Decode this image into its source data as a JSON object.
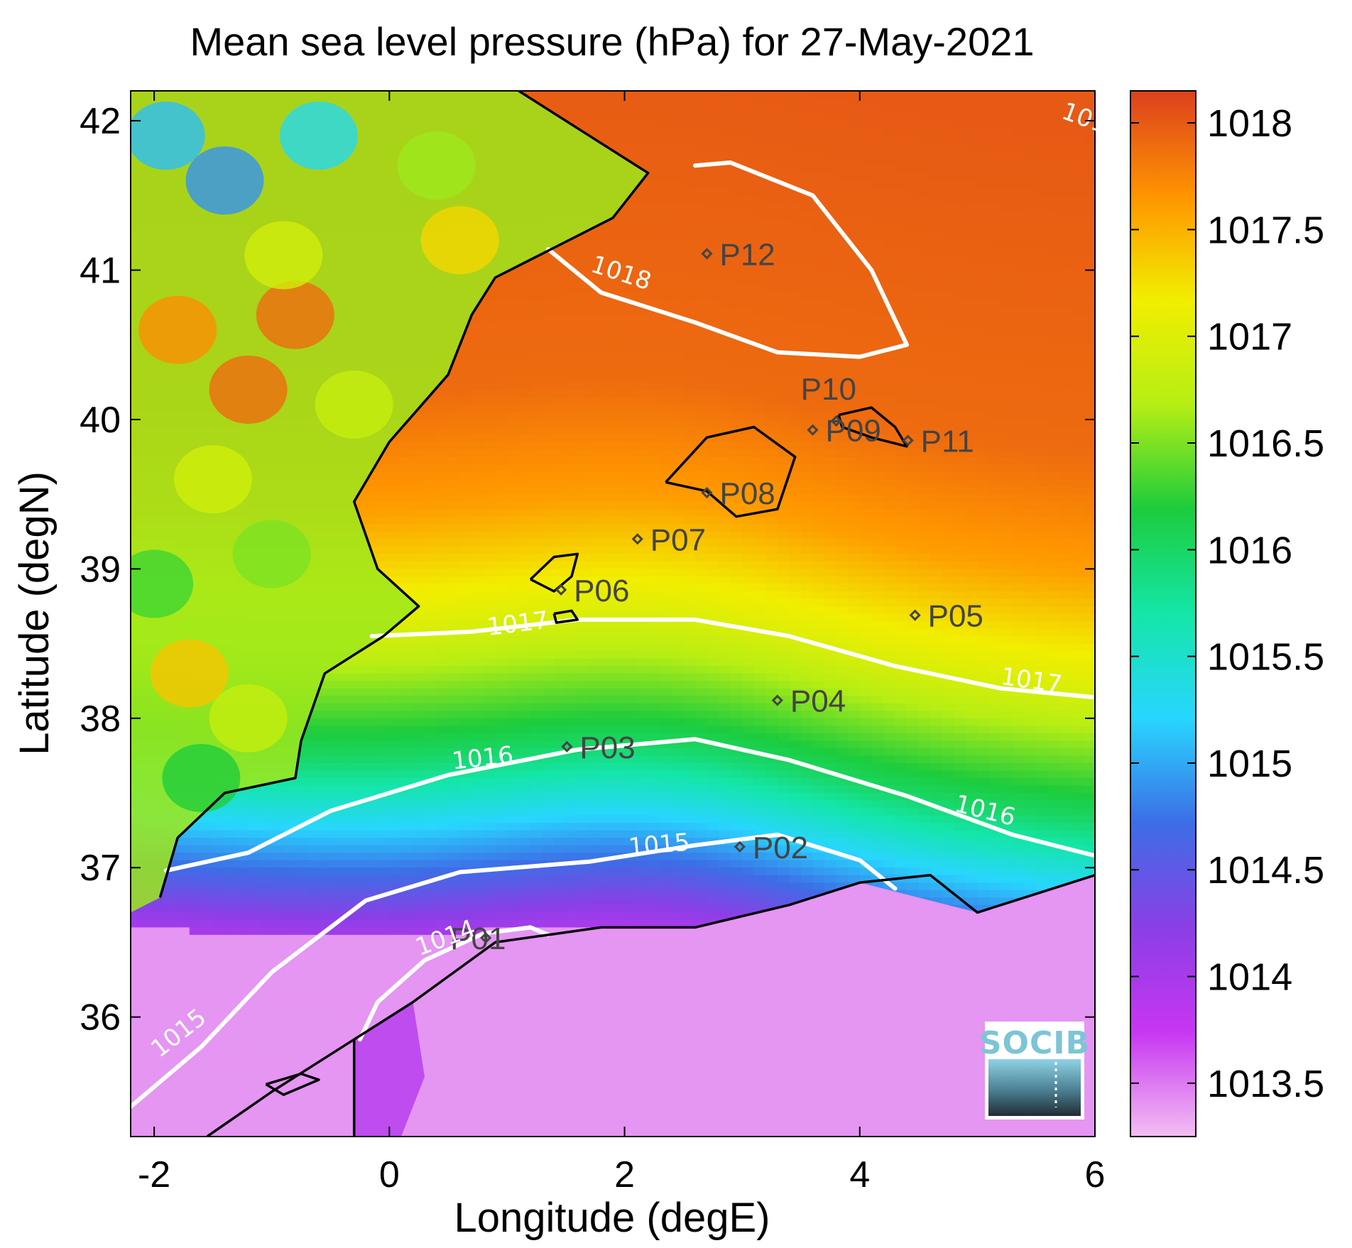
{
  "title": "Mean sea level pressure (hPa) for 27-May-2021",
  "xlabel": "Longitude (degE)",
  "ylabel": "Latitude (degN)",
  "xaxis": {
    "range": [
      -2.2,
      6.0
    ],
    "ticks": [
      -2,
      0,
      2,
      4,
      6
    ]
  },
  "yaxis": {
    "range": [
      35.2,
      42.2
    ],
    "ticks": [
      36,
      37,
      38,
      39,
      40,
      41,
      42
    ]
  },
  "colorbar": {
    "range": [
      1013.25,
      1018.15
    ],
    "ticks": [
      "1013.5",
      "1014",
      "1014.5",
      "1015",
      "1015.5",
      "1016",
      "1016.5",
      "1017",
      "1017.5",
      "1018"
    ],
    "tick_values": [
      1013.5,
      1014,
      1014.5,
      1015,
      1015.5,
      1016,
      1016.5,
      1017,
      1017.5,
      1018
    ],
    "colors": [
      "#f2bff2",
      "#c836f2",
      "#8a3fe6",
      "#3c6ee6",
      "#28d6ff",
      "#14e6a8",
      "#1ccc3c",
      "#b6ee14",
      "#f2ee00",
      "#ff9400",
      "#dc401e"
    ]
  },
  "contours": [
    {
      "label": "1018",
      "value": 1018
    },
    {
      "label": "1017",
      "value": 1017
    },
    {
      "label": "1016",
      "value": 1016
    },
    {
      "label": "1015",
      "value": 1015
    },
    {
      "label": "1014",
      "value": 1014
    }
  ],
  "stations": [
    {
      "label": "P01",
      "lon": 0.82,
      "lat": 36.53
    },
    {
      "label": "P02",
      "lon": 2.98,
      "lat": 37.14
    },
    {
      "label": "P03",
      "lon": 1.51,
      "lat": 37.81
    },
    {
      "label": "P04",
      "lon": 3.3,
      "lat": 38.12
    },
    {
      "label": "P05",
      "lon": 4.47,
      "lat": 38.69
    },
    {
      "label": "P06",
      "lon": 1.46,
      "lat": 38.86
    },
    {
      "label": "P07",
      "lon": 2.11,
      "lat": 39.2
    },
    {
      "label": "P08",
      "lon": 2.7,
      "lat": 39.51
    },
    {
      "label": "P09",
      "lon": 3.6,
      "lat": 39.93
    },
    {
      "label": "P10",
      "lon": 3.8,
      "lat": 39.99
    },
    {
      "label": "P11",
      "lon": 4.41,
      "lat": 39.86
    },
    {
      "label": "P12",
      "lon": 2.7,
      "lat": 41.11
    }
  ],
  "logo": {
    "text": "SOCIB"
  },
  "chart_data": {
    "type": "heatmap",
    "title": "Mean sea level pressure (hPa) for 27-May-2021",
    "xlabel": "Longitude (degE)",
    "ylabel": "Latitude (degN)",
    "xlim": [
      -2.2,
      6.0
    ],
    "ylim": [
      35.2,
      42.2
    ],
    "zlim": [
      1013.25,
      1018.15
    ],
    "contour_levels": [
      1014,
      1015,
      1016,
      1017,
      1018
    ],
    "grid": false,
    "legend": "colorbar-right"
  }
}
